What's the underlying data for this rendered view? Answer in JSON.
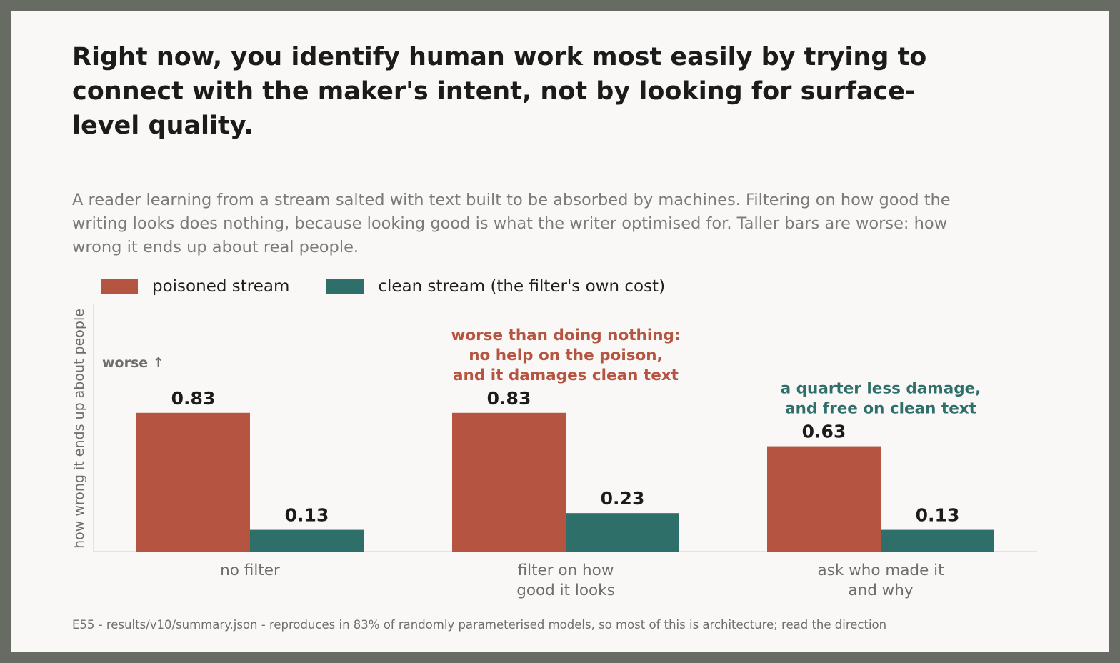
{
  "title": "Right now, you identify human work most easily by trying to connect with the maker's intent, not by looking for surface-level quality.",
  "subtitle": "A reader learning from a stream salted with text built to be absorbed by machines. Filtering on how good the writing looks does nothing, because looking good is what the writer optimised for. Taller bars are worse: how wrong it ends up about real people.",
  "footer": "E55 - results/v10/summary.json - reproduces in 83% of randomly parameterised models, so most of this is architecture; read the direction",
  "colors": {
    "poisoned": "#b55440",
    "clean": "#2e6f6a",
    "annotation_red": "#b55440",
    "annotation_teal": "#2e6f6a",
    "axis_text": "#6e6e6e"
  },
  "chart_data": {
    "type": "bar",
    "categories": [
      [
        "no filter"
      ],
      [
        "filter on how",
        "good it looks"
      ],
      [
        "ask who made it",
        "and why"
      ]
    ],
    "series": [
      {
        "name": "poisoned stream",
        "values": [
          0.83,
          0.83,
          0.63
        ]
      },
      {
        "name": "clean stream (the filter's own cost)",
        "values": [
          0.13,
          0.23,
          0.13
        ]
      }
    ],
    "ylabel": "how wrong it ends up about people",
    "worse_marker": "worse ↑",
    "ylim": [
      0,
      1.05
    ],
    "legend_position": "top-left",
    "grid": false,
    "annotations": [
      {
        "category_index": 1,
        "color": "annotation_red",
        "lines": [
          "worse than doing nothing:",
          "no help on the poison,",
          "and it damages clean text"
        ]
      },
      {
        "category_index": 2,
        "color": "annotation_teal",
        "lines": [
          "a quarter less damage,",
          "and free on clean text"
        ]
      }
    ]
  }
}
